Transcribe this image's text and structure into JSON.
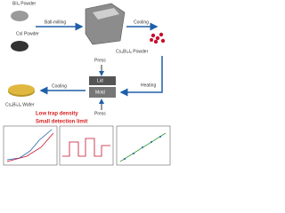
{
  "labels": {
    "bii3_powder": "BiI₃ Powder",
    "csi_powder": "CsI Powder",
    "ball_milling": "Ball-milling",
    "cooling_top": "Cooling",
    "product_powder": "Cs₃Bi₂I₉ Powder",
    "heating": "Heating",
    "cooling_bottom": "Cooling",
    "press_top": "Press",
    "lid": "Lid",
    "mold": "Mold",
    "press_bottom": "Press",
    "wafer": "Cs₃Bi₂I₉ Wafer",
    "highlight_1": "Low trap density",
    "highlight_2": "Small detection limit"
  }
}
